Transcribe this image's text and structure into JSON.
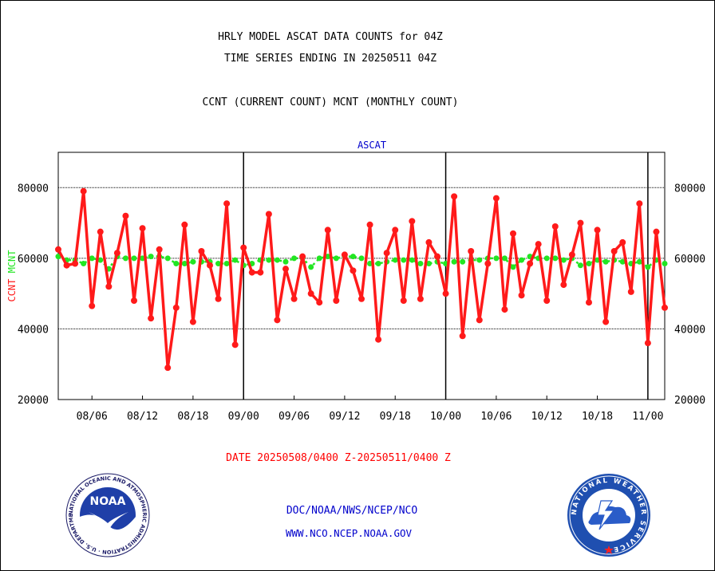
{
  "titles": {
    "line1": "HRLY MODEL ASCAT DATA COUNTS for 04Z",
    "line2": "TIME SERIES ENDING IN 20250511 04Z",
    "line3": "CCNT (CURRENT COUNT) MCNT (MONTHLY COUNT)"
  },
  "date_range": "DATE 20250508/0400 Z-20250511/0400 Z",
  "footer": {
    "line1": "DOC/NOAA/NWS/NCEP/NCO",
    "line2": "WWW.NCO.NCEP.NOAA.GOV"
  },
  "logos": {
    "left": {
      "name": "noaa-logo",
      "text": "NOAA",
      "ring_text": "NATIONAL OCEANIC AND ATMOSPHERIC ADMINISTRATION · U.S. DEPARTMENT OF COMMERCE"
    },
    "right": {
      "name": "nws-logo",
      "ring_text": "NATIONAL WEATHER SERVICE"
    }
  },
  "colors": {
    "ccnt": "#ff1a1a",
    "mcnt": "#22e622",
    "axis_text": "#000000",
    "legend_blue": "#0000cc",
    "date_red": "#ff0000"
  },
  "chart_data": {
    "type": "line",
    "title": "ASCAT",
    "ylabel_left": [
      "CCNT",
      "MCNT"
    ],
    "ylim": [
      20000,
      90000
    ],
    "yticks": [
      20000,
      40000,
      60000,
      80000
    ],
    "ytick_labels": [
      "20000",
      "40000",
      "60000",
      "80000"
    ],
    "xtick_labels": [
      "08/06",
      "08/12",
      "08/18",
      "09/00",
      "09/06",
      "09/12",
      "09/18",
      "10/00",
      "10/06",
      "10/12",
      "10/18",
      "11/00"
    ],
    "xtick_index": [
      4,
      10,
      16,
      22,
      28,
      34,
      40,
      46,
      52,
      58,
      64,
      70
    ],
    "day_boundaries_index": [
      22,
      46,
      70
    ],
    "grid": "horizontal dotted",
    "series": [
      {
        "name": "CCNT",
        "color": "#ff1a1a",
        "values": [
          62500,
          58000,
          58500,
          79000,
          46500,
          67500,
          52000,
          61500,
          72000,
          48000,
          68500,
          43000,
          62500,
          29000,
          46000,
          69500,
          42000,
          62000,
          58000,
          48500,
          75500,
          35500,
          63000,
          56000,
          56000,
          72500,
          42500,
          57000,
          48500,
          60500,
          50000,
          47500,
          68000,
          48000,
          61000,
          56500,
          48500,
          69500,
          37000,
          61500,
          68000,
          48000,
          70500,
          48500,
          64500,
          60500,
          50000,
          77500,
          38000,
          62000,
          42500,
          58500,
          77000,
          45500,
          67000,
          49500,
          58500,
          64000,
          48000,
          69000,
          52500,
          61000,
          70000,
          47500,
          68000,
          42000,
          62000,
          64500,
          50500,
          75500,
          36000,
          67500,
          46000
        ]
      },
      {
        "name": "MCNT",
        "color": "#22e622",
        "values": [
          60500,
          59500,
          59500,
          58500,
          60000,
          59500,
          57000,
          60500,
          60000,
          60000,
          60000,
          60500,
          60500,
          60000,
          58500,
          58500,
          59000,
          59000,
          59000,
          58500,
          58500,
          59500,
          58000,
          58500,
          59500,
          59500,
          59500,
          59000,
          60000,
          60000,
          57500,
          60000,
          60500,
          60000,
          60500,
          60500,
          60000,
          58500,
          58500,
          59000,
          59500,
          59500,
          59500,
          58500,
          58500,
          59000,
          58500,
          59000,
          59000,
          59500,
          59500,
          60000,
          60000,
          60000,
          57500,
          59500,
          60500,
          60000,
          60000,
          60000,
          59500,
          60000,
          58000,
          58500,
          59500,
          59000,
          59500,
          59000,
          58500,
          59000,
          57500,
          59500,
          58500
        ]
      }
    ]
  }
}
